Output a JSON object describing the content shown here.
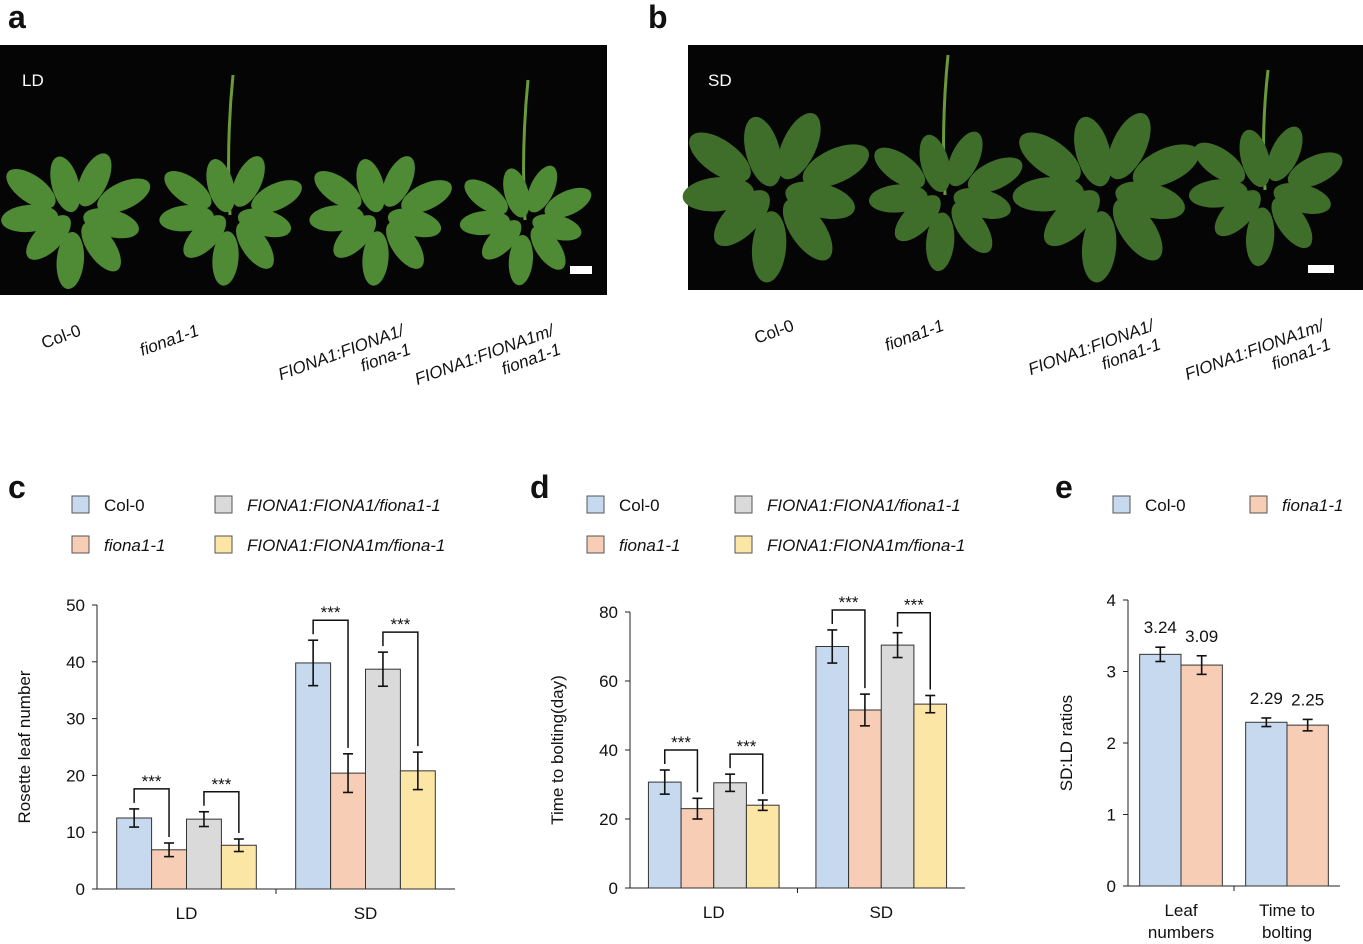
{
  "panels": [
    "a",
    "b",
    "c",
    "d",
    "e"
  ],
  "photo_a": {
    "condition": "LD",
    "labels": [
      [
        "Col-0"
      ],
      [
        "fiona1-1"
      ],
      [
        "FIONA1:FIONA1/",
        "fiona-1"
      ],
      [
        "FIONA1:FIONA1m/",
        "fiona1-1"
      ]
    ]
  },
  "photo_b": {
    "condition": "SD",
    "labels": [
      [
        "Col-0"
      ],
      [
        "fiona1-1"
      ],
      [
        "FIONA1:FIONA1/",
        "fiona1-1"
      ],
      [
        "FIONA1:FIONA1m/",
        "fiona1-1"
      ]
    ]
  },
  "chart_data": [
    {
      "type": "bar",
      "y_label": "Rosette leaf number",
      "categories": [
        [
          "LD"
        ],
        [
          "SD"
        ]
      ],
      "ylim": [
        0,
        50
      ],
      "yticks": [
        0,
        10,
        20,
        30,
        40,
        50
      ],
      "series": [
        {
          "name": "Col-0",
          "color": "#c7d9ef",
          "values": [
            12.5,
            39.8
          ],
          "errors": [
            1.6,
            4
          ]
        },
        {
          "name": "fiona1-1",
          "color": "#f8cdb5",
          "values": [
            6.9,
            20.4
          ],
          "errors": [
            1.2,
            3.4
          ]
        },
        {
          "name": "FIONA1:FIONA1/fiona1-1",
          "color": "#dadada",
          "values": [
            12.3,
            38.7
          ],
          "errors": [
            1.3,
            3
          ]
        },
        {
          "name": "FIONA1:FIONA1m/fiona-1",
          "color": "#fbe6a6",
          "values": [
            7.7,
            20.8
          ],
          "errors": [
            1.1,
            3.3
          ]
        }
      ],
      "significance": [
        "***",
        "***",
        "***",
        "***"
      ]
    },
    {
      "type": "bar",
      "y_label": "Time to bolting(day)",
      "categories": [
        [
          "LD"
        ],
        [
          "SD"
        ]
      ],
      "ylim": [
        0,
        80
      ],
      "yticks": [
        0,
        20,
        40,
        60,
        80
      ],
      "series": [
        {
          "name": "Col-0",
          "color": "#c7d9ef",
          "values": [
            30.7,
            70
          ],
          "errors": [
            3.5,
            4.8
          ]
        },
        {
          "name": "fiona1-1",
          "color": "#f8cdb5",
          "values": [
            23,
            51.6
          ],
          "errors": [
            3,
            4.6
          ]
        },
        {
          "name": "FIONA1:FIONA1/fiona1-1",
          "color": "#dadada",
          "values": [
            30.5,
            70.4
          ],
          "errors": [
            2.5,
            3.6
          ]
        },
        {
          "name": "FIONA1:FIONA1m/fiona-1",
          "color": "#fbe6a6",
          "values": [
            24,
            53.3
          ],
          "errors": [
            1.5,
            2.5
          ]
        }
      ],
      "significance": [
        "***",
        "***",
        "***",
        "***"
      ]
    },
    {
      "type": "bar",
      "y_label": "SD:LD ratios",
      "categories": [
        [
          "Leaf",
          "numbers"
        ],
        [
          "Time to",
          "bolting"
        ]
      ],
      "ylim": [
        0,
        4
      ],
      "yticks": [
        0,
        1,
        2,
        3,
        4
      ],
      "data_labels": true,
      "series": [
        {
          "name": "Col-0",
          "color": "#c7d9ef",
          "values": [
            3.24,
            2.29
          ],
          "errors": [
            0.1,
            0.06
          ]
        },
        {
          "name": "fiona1-1",
          "color": "#f8cdb5",
          "values": [
            3.09,
            2.25
          ],
          "errors": [
            0.13,
            0.08
          ]
        }
      ]
    }
  ]
}
